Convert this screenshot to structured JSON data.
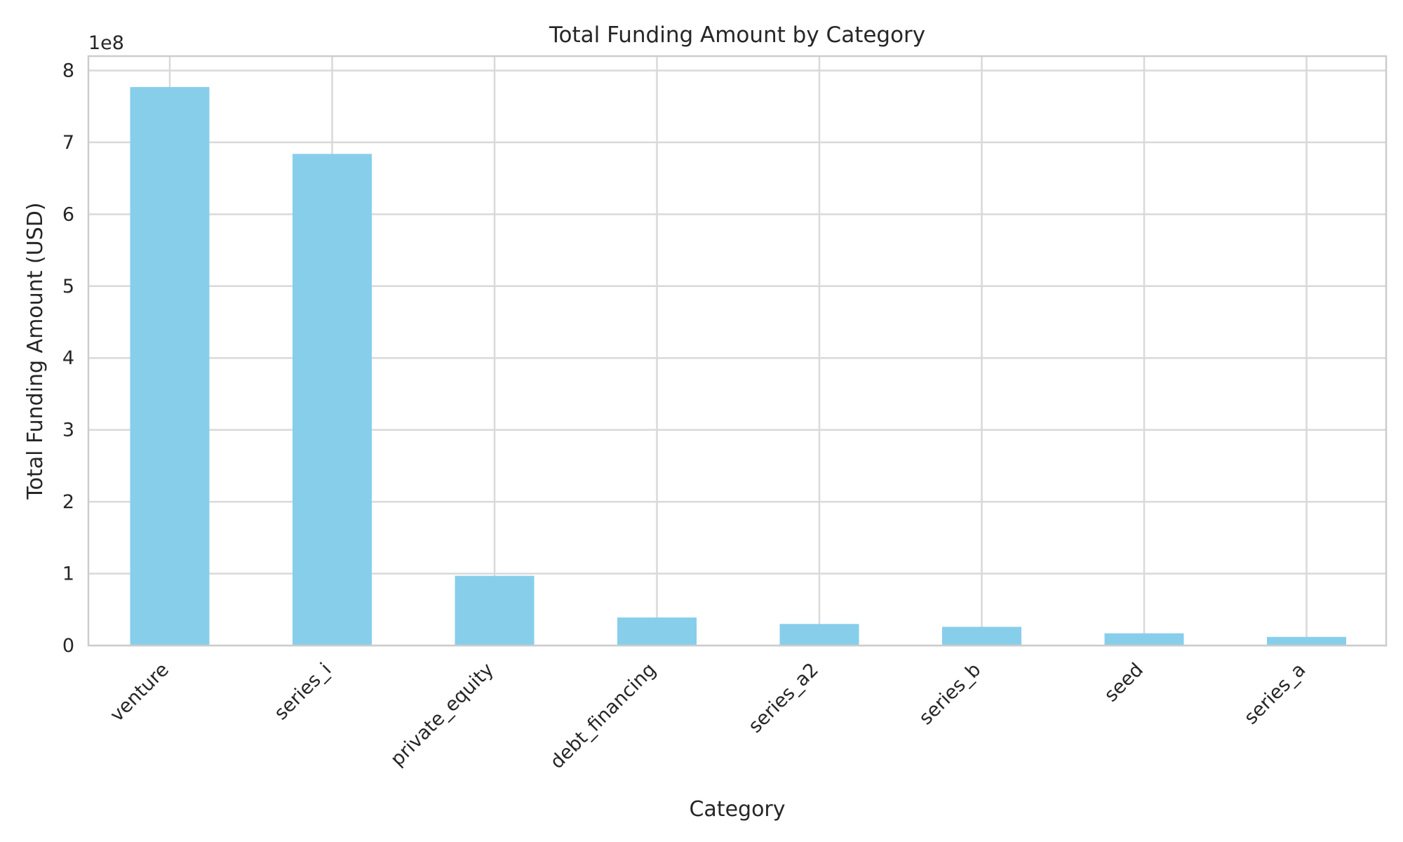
{
  "chart_data": {
    "type": "bar",
    "title": "Total Funding Amount by Category",
    "xlabel": "Category",
    "ylabel": "Total Funding Amount (USD)",
    "y_offset_label": "1e8",
    "categories": [
      "venture",
      "series_i",
      "private_equity",
      "debt_financing",
      "series_a2",
      "series_b",
      "seed",
      "series_a"
    ],
    "values": [
      777000000,
      684000000,
      97000000,
      39000000,
      30000000,
      26000000,
      17000000,
      12000000
    ],
    "ylim": [
      0,
      820000000
    ],
    "yticks": [
      0,
      100000000,
      200000000,
      300000000,
      400000000,
      500000000,
      600000000,
      700000000,
      800000000
    ],
    "ytick_labels": [
      "0",
      "1",
      "2",
      "3",
      "4",
      "5",
      "6",
      "7",
      "8"
    ],
    "grid": true,
    "bar_color": "#87ceeb"
  }
}
